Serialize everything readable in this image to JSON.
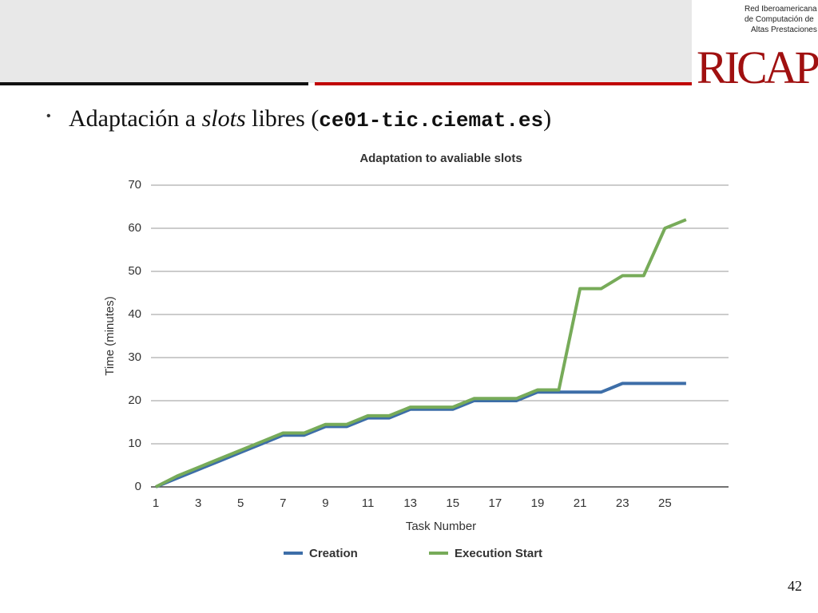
{
  "slide": {
    "heading": [
      "Adaptación a ",
      "slots",
      " libres (",
      "ce01-tic.ciemat.es",
      ")"
    ],
    "logo_text": [
      "Red Iberoamericana",
      "de Computación de",
      "Altas Prestaciones"
    ],
    "logo_mark": "RICAP",
    "page_number": 42
  },
  "chart_data": {
    "type": "line",
    "title": "Adaptation to avaliable slots",
    "x_label": "Task Number",
    "y_label": "Time (minutes)",
    "x": [
      1,
      2,
      3,
      4,
      5,
      6,
      7,
      8,
      9,
      10,
      11,
      12,
      13,
      14,
      15,
      16,
      17,
      18,
      19,
      20,
      21,
      22,
      23,
      24,
      25,
      26
    ],
    "series": [
      {
        "name": "Creation",
        "color": "#3d6ea8",
        "values": [
          0,
          2,
          4,
          6,
          8,
          10,
          12,
          12,
          14,
          14,
          16,
          16,
          18,
          18,
          18,
          20,
          20,
          20,
          22,
          22,
          22,
          22,
          24,
          24,
          24,
          24
        ]
      },
      {
        "name": "Execution Start",
        "color": "#77ab59",
        "values": [
          0,
          2.5,
          4.5,
          6.5,
          8.5,
          10.5,
          12.5,
          12.5,
          14.5,
          14.5,
          16.5,
          16.5,
          18.5,
          18.5,
          18.5,
          20.5,
          20.5,
          20.5,
          22.5,
          22.5,
          46,
          46,
          49,
          49,
          60,
          62
        ]
      }
    ],
    "xlim": [
      1,
      28
    ],
    "xticks": [
      1,
      3,
      5,
      7,
      9,
      11,
      13,
      15,
      17,
      19,
      21,
      23,
      25
    ],
    "ylim": [
      0,
      70
    ],
    "yticks": [
      0,
      10,
      20,
      30,
      40,
      50,
      60,
      70
    ],
    "grid": true,
    "legend": "bottom"
  }
}
